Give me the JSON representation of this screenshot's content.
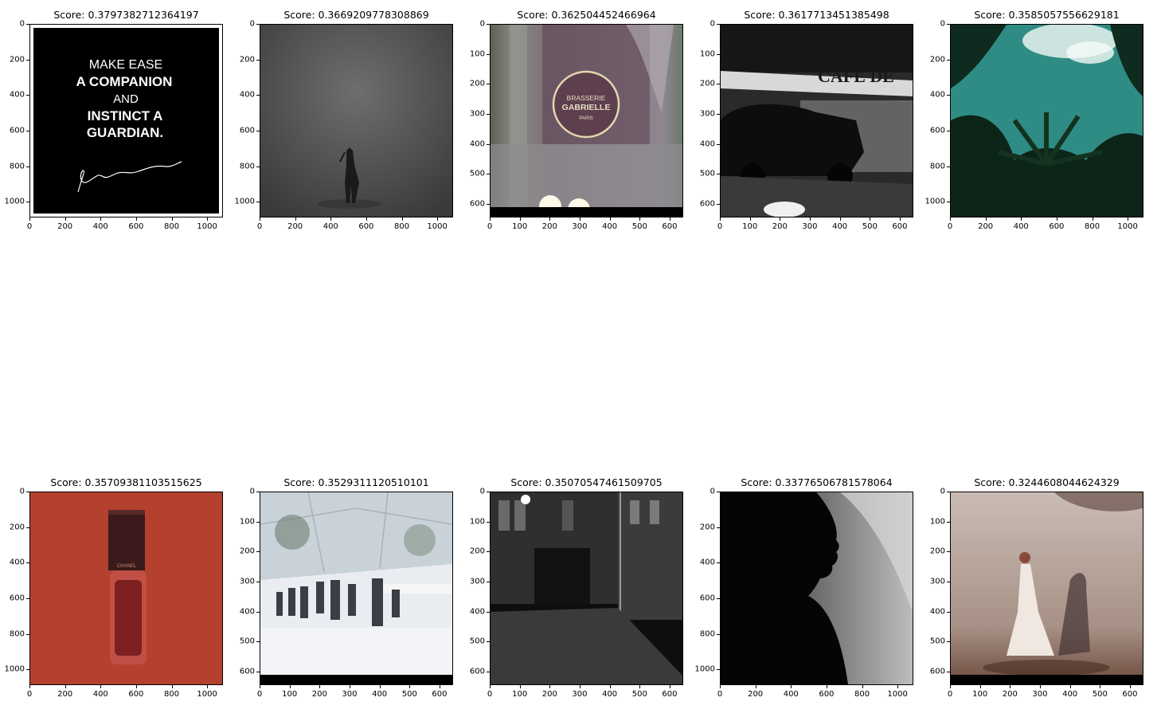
{
  "panels": [
    {
      "title": "Score: 0.3797382712364197",
      "yticks": [
        "0",
        "200",
        "400",
        "600",
        "800",
        "1000"
      ],
      "xticks": [
        "0",
        "200",
        "400",
        "600",
        "800",
        "1000"
      ],
      "extent": [
        1080,
        1080
      ],
      "image": {
        "kind": "text-card",
        "lines": [
          "MAKE EASE",
          "A COMPANION",
          "AND",
          "INSTINCT A",
          "GUARDIAN."
        ]
      }
    },
    {
      "title": "Score: 0.3669209778308869",
      "yticks": [
        "0",
        "200",
        "400",
        "600",
        "800",
        "1000"
      ],
      "xticks": [
        "0",
        "200",
        "400",
        "600",
        "800",
        "1000"
      ],
      "extent": [
        1080,
        1080
      ],
      "image": {
        "kind": "grey-studio-figure"
      }
    },
    {
      "title": "Score: 0.362504452466964",
      "yticks": [
        "0",
        "100",
        "200",
        "300",
        "400",
        "500",
        "600"
      ],
      "xticks": [
        "0",
        "100",
        "200",
        "300",
        "400",
        "500",
        "600"
      ],
      "extent": [
        640,
        640
      ],
      "image": {
        "kind": "brasserie-sign",
        "lines": [
          "BRASSERIE",
          "GABRIELLE",
          "PARIS"
        ]
      }
    },
    {
      "title": "Score: 0.3617713451385498",
      "yticks": [
        "0",
        "100",
        "200",
        "300",
        "400",
        "500",
        "600"
      ],
      "xticks": [
        "0",
        "100",
        "200",
        "300",
        "400",
        "500",
        "600"
      ],
      "extent": [
        640,
        640
      ],
      "image": {
        "kind": "cafe-street",
        "lines": [
          "CAFE DE"
        ]
      }
    },
    {
      "title": "Score: 0.3585057556629181",
      "yticks": [
        "0",
        "200",
        "400",
        "600",
        "800",
        "1000"
      ],
      "xticks": [
        "0",
        "200",
        "400",
        "600",
        "800",
        "1000"
      ],
      "extent": [
        1080,
        1080
      ],
      "image": {
        "kind": "palm-sky"
      }
    },
    {
      "title": "Score: 0.35709381103515625",
      "yticks": [
        "0",
        "200",
        "400",
        "600",
        "800",
        "1000"
      ],
      "xticks": [
        "0",
        "200",
        "400",
        "600",
        "800",
        "1000"
      ],
      "extent": [
        1080,
        1080
      ],
      "image": {
        "kind": "lipstick-bottle",
        "lines": [
          "CHANEL"
        ]
      }
    },
    {
      "title": "Score: 0.3529311120510101",
      "yticks": [
        "0",
        "100",
        "200",
        "300",
        "400",
        "500",
        "600"
      ],
      "xticks": [
        "0",
        "100",
        "200",
        "300",
        "400",
        "500",
        "600"
      ],
      "extent": [
        640,
        640
      ],
      "image": {
        "kind": "runway-show"
      }
    },
    {
      "title": "Score: 0.35070547461509705",
      "yticks": [
        "0",
        "100",
        "200",
        "300",
        "400",
        "500",
        "600"
      ],
      "xticks": [
        "0",
        "100",
        "200",
        "300",
        "400",
        "500",
        "600"
      ],
      "extent": [
        640,
        640
      ],
      "image": {
        "kind": "night-street"
      }
    },
    {
      "title": "Score: 0.33776506781578064",
      "yticks": [
        "0",
        "200",
        "400",
        "600",
        "800",
        "1000"
      ],
      "xticks": [
        "0",
        "200",
        "400",
        "600",
        "800",
        "1000"
      ],
      "extent": [
        1080,
        1080
      ],
      "image": {
        "kind": "silhouette-profile"
      }
    },
    {
      "title": "Score: 0.3244608044624329",
      "yticks": [
        "0",
        "100",
        "200",
        "300",
        "400",
        "500",
        "600"
      ],
      "xticks": [
        "0",
        "100",
        "200",
        "300",
        "400",
        "500",
        "600"
      ],
      "extent": [
        640,
        640
      ],
      "image": {
        "kind": "dancer-room"
      }
    }
  ]
}
